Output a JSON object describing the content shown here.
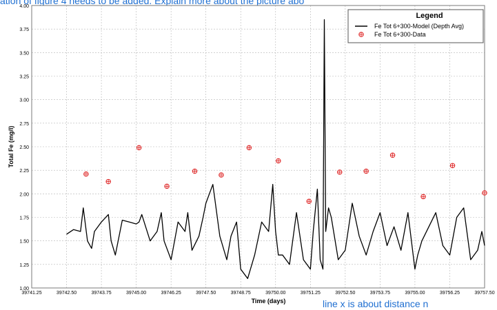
{
  "annotations": {
    "top": "ation of figure 4 needs to be added. Explain more about the picture abo",
    "bottom": "line x is about distance n"
  },
  "chart_data": {
    "type": "line",
    "title": "",
    "xlabel": "Time (days)",
    "ylabel": "Total Fe (mg/l)",
    "xlim": [
      39741.25,
      39757.5
    ],
    "ylim": [
      1.0,
      4.0
    ],
    "x_ticks": [
      "39741.25",
      "39742.50",
      "39743.75",
      "39745.00",
      "39746.25",
      "39747.50",
      "39748.75",
      "39750.00",
      "39751.25",
      "39752.50",
      "39753.75",
      "39755.00",
      "39756.25",
      "39757.50"
    ],
    "y_ticks": [
      "1.00",
      "1.25",
      "1.50",
      "1.75",
      "2.00",
      "2.25",
      "2.50",
      "2.75",
      "3.00",
      "3.25",
      "3.50",
      "3.75",
      "4.00"
    ],
    "grid": true,
    "legend": {
      "title": "Legend",
      "position": "top-right",
      "entries": [
        "Fe Tot 6+300-Model (Depth Avg)",
        "Fe Tot 6+300-Data"
      ]
    },
    "series": [
      {
        "name": "Fe Tot 6+300-Model (Depth Avg)",
        "kind": "line",
        "color": "#000000",
        "x": [
          39742.5,
          39742.75,
          39743.0,
          39743.1,
          39743.25,
          39743.4,
          39743.5,
          39743.75,
          39744.0,
          39744.1,
          39744.25,
          39744.5,
          39744.75,
          39745.0,
          39745.1,
          39745.2,
          39745.5,
          39745.75,
          39745.9,
          39746.0,
          39746.25,
          39746.5,
          39746.75,
          39746.85,
          39747.0,
          39747.25,
          39747.4,
          39747.5,
          39747.75,
          39748.0,
          39748.25,
          39748.4,
          39748.6,
          39748.75,
          39749.0,
          39749.25,
          39749.5,
          39749.75,
          39749.9,
          39750.0,
          39750.1,
          39750.25,
          39750.5,
          39750.75,
          39751.0,
          39751.25,
          39751.35,
          39751.5,
          39751.6,
          39751.7,
          39751.75,
          39751.8,
          39751.9,
          39752.0,
          39752.25,
          39752.5,
          39752.75,
          39753.0,
          39753.25,
          39753.5,
          39753.75,
          39754.0,
          39754.25,
          39754.5,
          39754.75,
          39755.0,
          39755.1,
          39755.25,
          39755.5,
          39755.75,
          39756.0,
          39756.25,
          39756.5,
          39756.75,
          39757.0,
          39757.25,
          39757.4,
          39757.5
        ],
        "y": [
          1.57,
          1.62,
          1.6,
          1.85,
          1.5,
          1.42,
          1.6,
          1.7,
          1.78,
          1.5,
          1.35,
          1.72,
          1.7,
          1.68,
          1.7,
          1.78,
          1.5,
          1.6,
          1.8,
          1.5,
          1.3,
          1.7,
          1.6,
          1.8,
          1.4,
          1.55,
          1.75,
          1.9,
          2.1,
          1.55,
          1.3,
          1.55,
          1.7,
          1.2,
          1.1,
          1.35,
          1.7,
          1.6,
          2.1,
          1.6,
          1.35,
          1.35,
          1.25,
          1.8,
          1.3,
          1.2,
          1.6,
          2.05,
          1.3,
          1.2,
          3.85,
          1.6,
          1.85,
          1.75,
          1.3,
          1.4,
          1.9,
          1.55,
          1.35,
          1.6,
          1.8,
          1.45,
          1.65,
          1.4,
          1.8,
          1.2,
          1.35,
          1.5,
          1.65,
          1.8,
          1.45,
          1.35,
          1.75,
          1.85,
          1.3,
          1.4,
          1.6,
          1.45
        ]
      },
      {
        "name": "Fe Tot 6+300-Data",
        "kind": "scatter",
        "color": "#e03030",
        "x": [
          39743.2,
          39744.0,
          39745.1,
          39746.1,
          39747.1,
          39748.05,
          39749.05,
          39750.1,
          39751.2,
          39752.3,
          39753.25,
          39754.2,
          39755.3,
          39756.35,
          39757.5
        ],
        "y": [
          2.21,
          2.13,
          2.49,
          2.08,
          2.24,
          2.2,
          2.49,
          2.35,
          1.92,
          2.23,
          2.24,
          2.41,
          1.97,
          2.3,
          2.01
        ]
      }
    ]
  }
}
